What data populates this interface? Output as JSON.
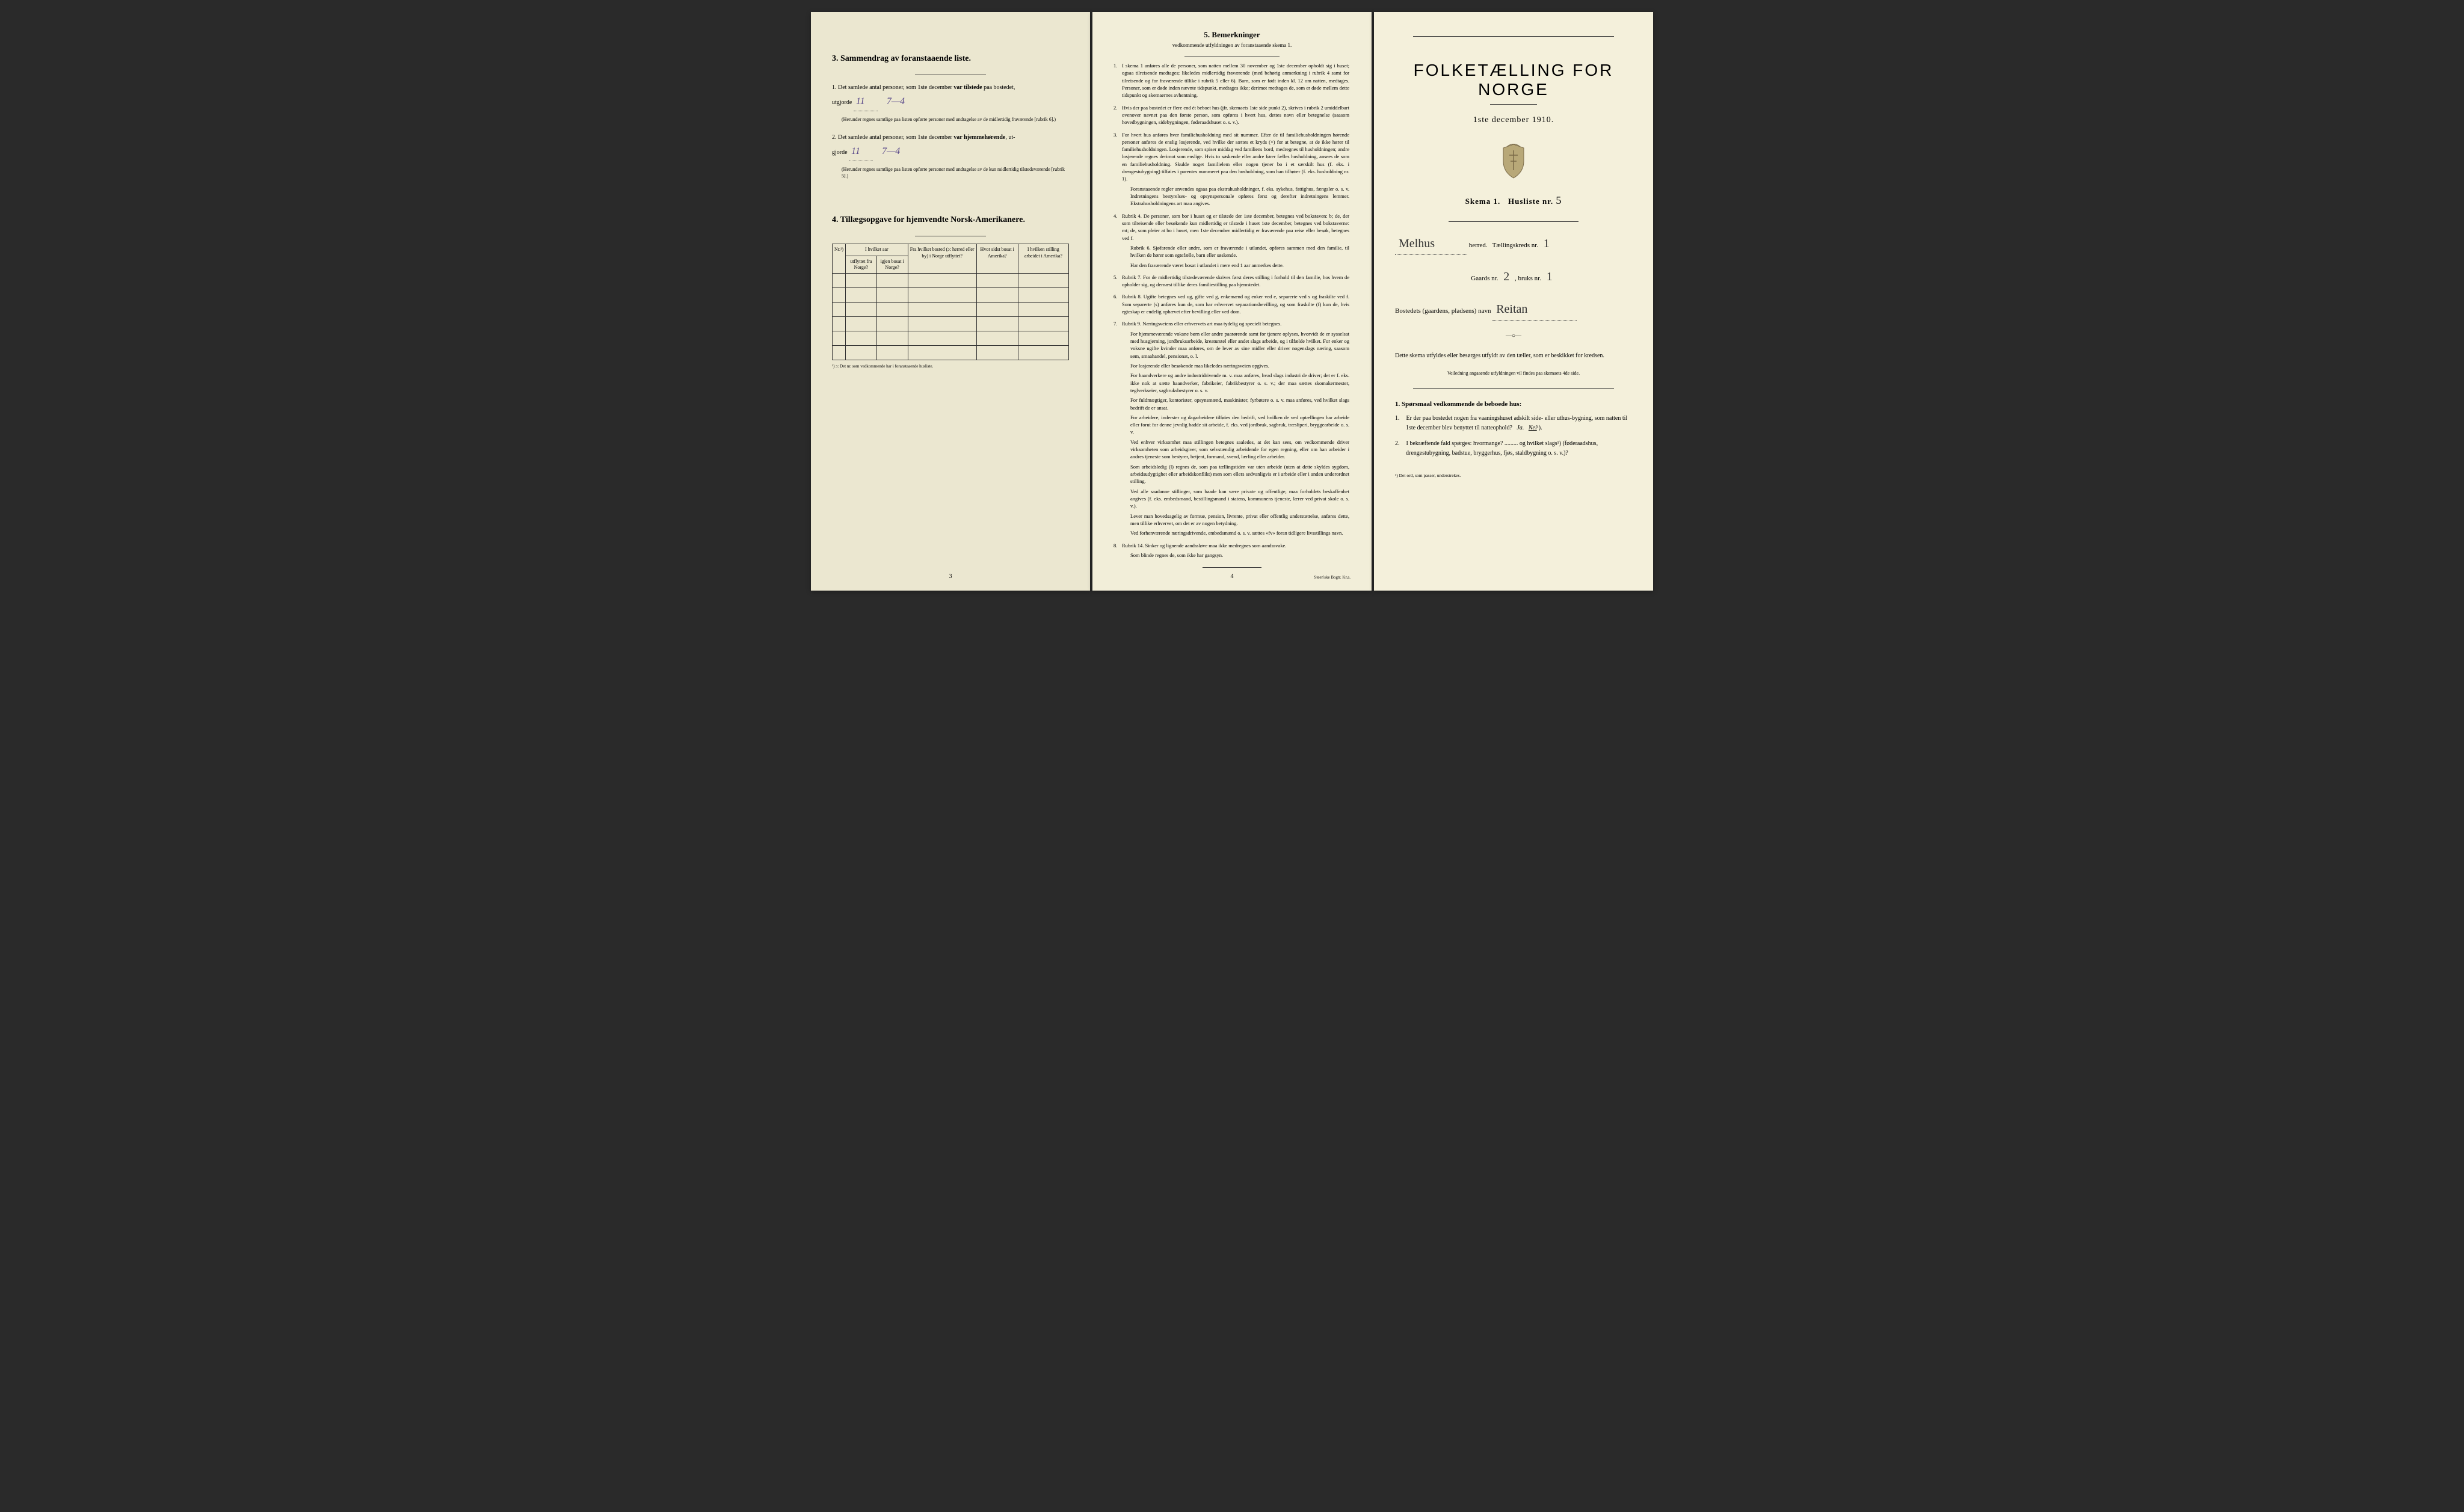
{
  "page3": {
    "section3_title": "3.  Sammendrag av foranstaaende liste.",
    "line1_prefix": "1.  Det samlede antal personer, som 1ste december",
    "line1_bold": "var tilstede",
    "line1_suffix": "paa bostedet,",
    "line1_word": "utgjorde",
    "line1_val1": "11",
    "line1_val2": "7—4",
    "line1_note": "(Herunder regnes samtlige paa listen opførte personer med undtagelse av de midlertidig fraværende [rubrik 6].)",
    "line2_prefix": "2.  Det samlede antal personer, som 1ste december",
    "line2_bold": "var hjemmehørende",
    "line2_suffix": ", ut-",
    "line2_word": "gjorde",
    "line2_val1": "11",
    "line2_val2": "7—4",
    "line2_note": "(Herunder regnes samtlige paa listen opførte personer med undtagelse av de kun midlertidig tilstedeværende [rubrik 5].)",
    "section4_title": "4.  Tillægsopgave for hjemvendte Norsk-Amerikanere.",
    "table": {
      "col1": "Nr.¹)",
      "col2a": "I hvilket aar",
      "col2b_left": "utflyttet fra Norge?",
      "col2b_right": "igjen bosat i Norge?",
      "col3": "Fra hvilket bosted (ɔ: herred eller by) i Norge utflyttet?",
      "col4": "Hvor sidst bosat i Amerika?",
      "col5": "I hvilken stilling arbeidet i Amerika?"
    },
    "table_footnote": "¹) ɔ: Det nr. som vedkommende har i foranstaaende husliste.",
    "page_num": "3"
  },
  "page4": {
    "title": "5.  Bemerkninger",
    "subtitle": "vedkommende utfyldningen av foranstaaende skema 1.",
    "items": [
      {
        "num": "1.",
        "text": "I skema 1 anføres alle de personer, som natten mellem 30 november og 1ste december opholdt sig i huset; ogsaa tilreisende medtages; likeledes midlertidig fraværende (med behørig anmerkning i rubrik 4 samt for tilreisende og for fraværende tillike i rubrik 5 eller 6). Barn, som er født inden kl. 12 om natten, medtages. Personer, som er døde inden nævnte tidspunkt, medtages ikke; derimot medtages de, som er døde mellem dette tidspunkt og skemaernes avhentning."
      },
      {
        "num": "2.",
        "text": "Hvis der paa bostedet er flere end ét beboet hus (jfr. skemaets 1ste side punkt 2), skrives i rubrik 2 umiddelbart ovenover navnet paa den første person, som opføres i hvert hus, dettes navn eller betegnelse (saasom hovedbygningen, sidebygningen, føderaadshuset o. s. v.)."
      },
      {
        "num": "3.",
        "text": "For hvert hus anføres hver familiehusholdning med sit nummer. Efter de til familiehusholdningen hørende personer anføres de enslig losjerende, ved hvilke der sættes et kryds (×) for at betegne, at de ikke hører til familiehusholdningen. Losjerende, som spiser middag ved familiens bord, medregnes til husholdningen; andre losjerende regnes derimot som enslige. Hvis to søskende eller andre fører fælles husholdning, ansees de som en familiehusholdning. Skulde noget familielem eller nogen tjener bo i et særskilt hus (f. eks. i drengestubygning) tilføies i parentes nummeret paa den husholdning, som han tilhører (f. eks. husholdning nr. 1).",
        "sub": "Foranstaaende regler anvendes ogsaa paa ekstrahusholdninger, f. eks. sykehus, fattighus, fængsler o. s. v. Indretningens bestyrelses- og opsynspersonale opføres først og derefter indretningens lemmer. Ekstrahusholdningens art maa angives."
      },
      {
        "num": "4.",
        "text": "Rubrik 4. De personer, som bor i huset og er tilstede der 1ste december, betegnes ved bokstaven: b; de, der som tilreisende eller besøkende kun midlertidig er tilstede i huset 1ste december, betegnes ved bokstaverne: mt; de, som pleier at bo i huset, men 1ste december midlertidig er fraværende paa reise eller besøk, betegnes ved f.",
        "sub": "Rubrik 6. Sjøfarende eller andre, som er fraværende i utlandet, opføres sammen med den familie, til hvilken de hører som egtefælle, barn eller søskende.",
        "sub2": "Har den fraværende været bosat i utlandet i mere end 1 aar anmerkes dette."
      },
      {
        "num": "5.",
        "text": "Rubrik 7. For de midlertidig tilstedeværende skrives først deres stilling i forhold til den familie, hos hvem de opholder sig, og dernæst tillike deres familiestilling paa hjemstedet."
      },
      {
        "num": "6.",
        "text": "Rubrik 8. Ugifte betegnes ved ug, gifte ved g, enkemænd og enker ved e, separerte ved s og fraskilte ved f. Som separerte (s) anføres kun de, som har erhvervet separationsbevilling, og som fraskilte (f) kun de, hvis egteskap er endelig ophævet efter bevilling eller ved dom."
      },
      {
        "num": "7.",
        "text": "Rubrik 9. Næringsveiens eller erhvervets art maa tydelig og specielt betegnes.",
        "sub": "For hjemmeværende voksne børn eller andre paarørende samt for tjenere oplyses, hvorvidt de er sysselsat med husgjerning, jordbruksarbeide, kreaturstel eller andet slags arbeide, og i tilfælde hvilket. For enker og voksne ugifte kvinder maa anføres, om de lever av sine midler eller driver nogenslags næring, saasom søm, smaahandel, pensionat, o. l.",
        "sub2": "For losjerende eller besøkende maa likeledes næringsveien opgives.",
        "sub3": "For haandverkere og andre industridrivende m. v. maa anføres, hvad slags industri de driver; det er f. eks. ikke nok at sætte haandverker, fabrikeier, fabrikbestyrer o. s. v.; der maa sættes skomakermester, teglverkseier, sagbruksbestyrer o. s. v.",
        "sub4": "For fuldmægtiger, kontorister, opsynsmænd, maskinister, fyrbøtere o. s. v. maa anføres, ved hvilket slags bedrift de er ansat.",
        "sub5": "For arbeidere, inderster og dagarbeidere tilføies den bedrift, ved hvilken de ved optællingen har arbeide eller forut for denne jevnlig hadde sit arbeide, f. eks. ved jordbruk, sagbruk, træsliperi, bryggearbeide o. s. v.",
        "sub6": "Ved enhver virksomhet maa stillingen betegnes saaledes, at det kan sees, om vedkommende driver virksomheten som arbeidsgiver, som selvstændig arbeidende for egen regning, eller om han arbeider i andres tjeneste som bestyrer, betjent, formand, svend, lærling eller arbeider.",
        "sub7": "Som arbeidsledig (l) regnes de, som paa tællingstiden var uten arbeide (uten at dette skyldes sygdom, arbeidsudygtighet eller arbeidskonflikt) men som ellers sedvanligvis er i arbeide eller i anden underordnet stilling.",
        "sub8": "Ved alle saadanne stillinger, som baade kan være private og offentlige, maa forholdets beskaffenhet angives (f. eks. embedsmand, bestillingsmand i statens, kommunens tjeneste, lærer ved privat skole o. s. v.).",
        "sub9": "Lever man hovedsagelig av formue, pension, livrente, privat eller offentlig understøttelse, anføres dette, men tillike erhvervet, om det er av nogen betydning.",
        "sub10": "Ved forhenværende næringsdrivende, embedsmænd o. s. v. sættes «fv» foran tidligere livsstillings navn."
      },
      {
        "num": "8.",
        "text": "Rubrik 14. Sinker og lignende aandssløve maa ikke medregnes som aandssvake.",
        "sub": "Som blinde regnes de, som ikke har gangsyn."
      }
    ],
    "page_num": "4",
    "printer": "Steen'ske Bogtr. Kr.a."
  },
  "page1": {
    "main_title": "FOLKETÆLLING FOR NORGE",
    "date": "1ste december 1910.",
    "skema_label": "Skema 1.",
    "husliste_label": "Husliste nr.",
    "husliste_nr": "5",
    "herred_hw": "Melhus",
    "herred_label": "herred.",
    "kreds_label": "Tællingskreds nr.",
    "kreds_nr": "1",
    "gaards_label": "Gaards nr.",
    "gaards_nr": "2",
    "bruks_label": ", bruks nr.",
    "bruks_nr": "1",
    "bosted_label": "Bostedets (gaardens, pladsens) navn",
    "bosted_hw": "Reitan",
    "instruction": "Dette skema utfyldes eller besørges utfyldt av den tæller, som er beskikket for kredsen.",
    "instruction_small": "Veiledning angaaende utfyldningen vil findes paa skemaets 4de side.",
    "q_title": "1. Spørsmaal vedkommende de beboede hus:",
    "q1_num": "1.",
    "q1_text_a": "Er der paa bostedet nogen fra vaaningshuset adskilt side- eller uthus-bygning, som natten til 1ste december blev benyttet til natteophold?",
    "q1_ja": "Ja.",
    "q1_nei": "Nei",
    "q1_sup": "¹).",
    "q2_num": "2.",
    "q2_text": "I bekræftende fald spørges: hvormange? ......... og hvilket slags¹) (føderaadshus, drengestubygning, badstue, bryggerhus, fjøs, staldbygning o. s. v.)?",
    "footnote": "¹) Det ord, som passer, understrekes."
  }
}
